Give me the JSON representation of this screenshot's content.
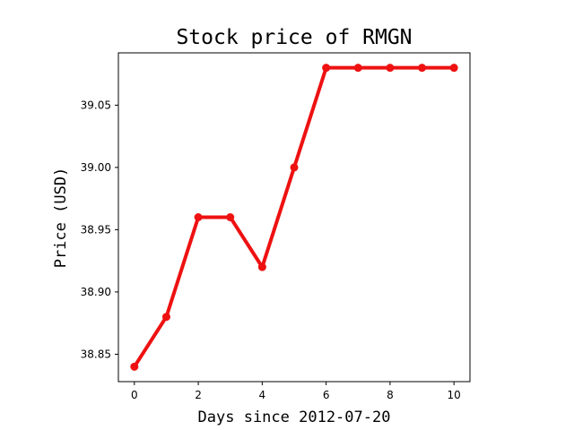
{
  "chart_data": {
    "type": "line",
    "title": "Stock price of RMGN",
    "xlabel": "Days since 2012-07-20",
    "ylabel": "Price (USD)",
    "x": [
      0,
      1,
      2,
      3,
      4,
      5,
      6,
      7,
      8,
      9,
      10
    ],
    "series": [
      {
        "values": [
          38.84,
          38.88,
          38.96,
          38.96,
          38.92,
          39.0,
          39.08,
          39.08,
          39.08,
          39.08,
          39.08
        ],
        "color": "#ee1111"
      }
    ],
    "xlim": [
      -0.5,
      10.5
    ],
    "ylim": [
      38.828,
      39.092
    ],
    "xticks": [
      0,
      2,
      4,
      6,
      8,
      10
    ],
    "yticks": [
      38.85,
      38.9,
      38.95,
      39.0,
      39.05
    ],
    "ytick_labels": [
      "38.85",
      "38.90",
      "38.95",
      "39.00",
      "39.05"
    ],
    "grid": false,
    "marker": "circle"
  }
}
